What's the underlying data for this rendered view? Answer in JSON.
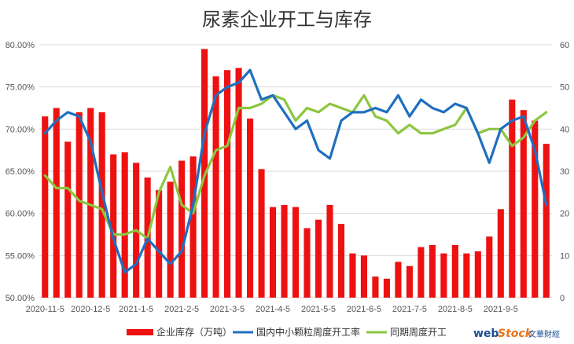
{
  "chart_data": {
    "type": "bar",
    "title": "尿素企业开工与库存",
    "x_labels": [
      "2020-11-5",
      "2020-12-5",
      "2021-1-5",
      "2021-2-5",
      "2021-3-5",
      "2021-4-5",
      "2021-5-5",
      "2021-6-5",
      "2021-7-5",
      "2021-8-5",
      "2021-9-5"
    ],
    "y_left": {
      "min": 50,
      "max": 80,
      "step": 5,
      "unit": "%",
      "ticks": [
        "50.00%",
        "55.00%",
        "60.00%",
        "65.00%",
        "70.00%",
        "75.00%",
        "80.00%"
      ]
    },
    "y_right": {
      "min": 0,
      "max": 60,
      "step": 10,
      "ticks": [
        "0",
        "10",
        "20",
        "30",
        "40",
        "50",
        "60"
      ]
    },
    "series": [
      {
        "name": "企业库存（万吨）",
        "type": "bar",
        "axis": "right",
        "color": "#ee1111",
        "values": [
          43,
          45,
          37,
          44,
          45,
          44,
          34,
          34.5,
          32,
          28.5,
          25.5,
          27.5,
          32.5,
          33.5,
          59,
          52.5,
          54,
          54.5,
          42.5,
          30.5,
          21.5,
          22,
          21.5,
          16.5,
          18.5,
          22,
          17.5,
          10.5,
          10,
          5,
          4.5,
          8.5,
          7.5,
          12,
          12.5,
          10.5,
          12.5,
          10.5,
          11,
          14.5,
          21,
          47,
          44.5,
          42,
          36.5
        ]
      },
      {
        "name": "国内中小颗粒周度开工率",
        "type": "line",
        "axis": "left",
        "color": "#1f6fbf",
        "values": [
          69.5,
          71.0,
          72.0,
          71.5,
          68.5,
          62.5,
          57.0,
          53.0,
          54.0,
          57.0,
          55.5,
          54.0,
          55.5,
          61.0,
          69.5,
          74.0,
          75.0,
          75.5,
          77.0,
          73.5,
          74.0,
          72.0,
          70.0,
          71.0,
          67.5,
          66.5,
          71.0,
          72.0,
          72.0,
          72.5,
          72.0,
          74.0,
          71.5,
          73.5,
          72.5,
          72.0,
          73.0,
          72.5,
          69.5,
          66.0,
          70.0,
          71.0,
          71.5,
          67.5,
          61.0
        ]
      },
      {
        "name": "同期周度开工",
        "type": "line",
        "axis": "left",
        "color": "#8cc63f",
        "values": [
          64.5,
          63.0,
          63.0,
          61.5,
          61.0,
          60.5,
          57.5,
          57.5,
          58.0,
          57.0,
          62.5,
          65.5,
          61.0,
          60.0,
          64.5,
          67.5,
          68.0,
          72.5,
          72.5,
          73.0,
          74.0,
          73.5,
          71.0,
          72.5,
          72.0,
          73.0,
          72.5,
          72.0,
          74.0,
          71.5,
          71.0,
          69.5,
          70.5,
          69.5,
          69.5,
          70.0,
          70.5,
          72.5,
          69.5,
          70.0,
          70.0,
          68.0,
          69.0,
          71.0,
          72.0
        ]
      }
    ],
    "legend_position": "bottom",
    "grid": true
  },
  "watermark": {
    "brand_web": "web",
    "brand_stock": "Stock",
    "brand_cn": "文華財經"
  }
}
